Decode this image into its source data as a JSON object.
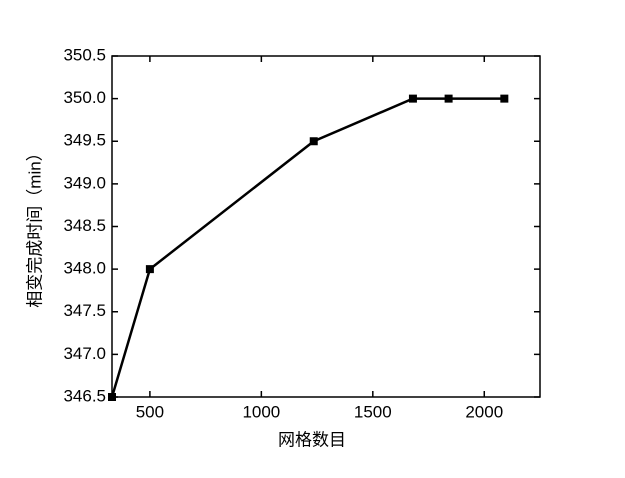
{
  "chart_data": {
    "type": "line",
    "x_label": "网格数目",
    "y_label": "相变完成时间（min）",
    "x": [
      330,
      500,
      1235,
      1680,
      1840,
      2090
    ],
    "series": [
      {
        "name": "相变完成时间",
        "color": "#000000",
        "values": [
          346.5,
          348.0,
          349.5,
          350.0,
          350.0,
          350.0
        ]
      }
    ],
    "xlim": [
      330,
      2250
    ],
    "xticks": [
      500,
      1000,
      1500,
      2000
    ],
    "ylim": [
      346.5,
      350.5
    ],
    "yticks": [
      {
        "value": 346.5,
        "label": "346.5"
      },
      {
        "value": 347,
        "label": "347.0"
      },
      347.5,
      {
        "value": 348,
        "label": "348.0"
      },
      348.5,
      {
        "value": 349,
        "label": "349.0"
      },
      349.5,
      {
        "value": 350,
        "label": "350.0"
      },
      350.5
    ],
    "marker": "square",
    "legend": false
  }
}
